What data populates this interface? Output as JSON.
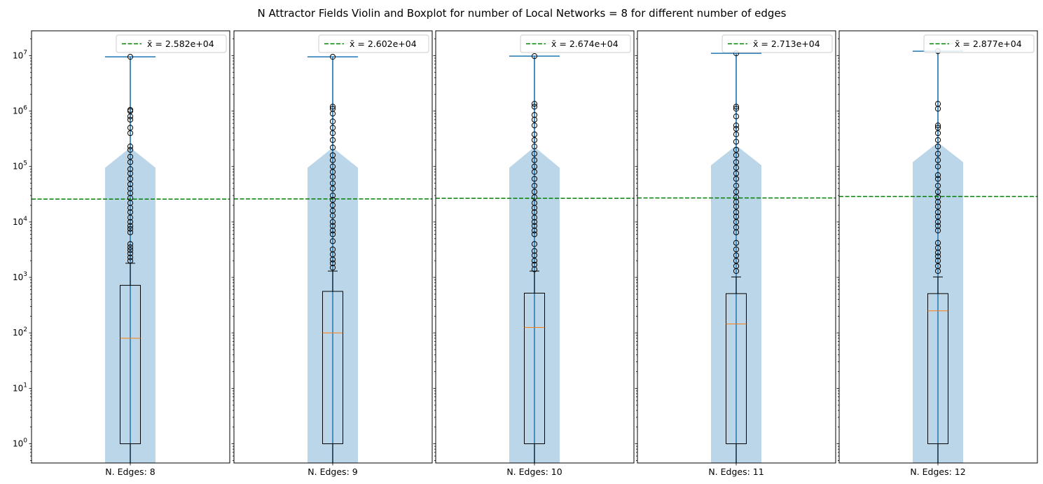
{
  "chart_data": {
    "type": "violin-boxplot",
    "title": "N Attractor Fields Violin and Boxplot for number of Local Networks = 8 for different number of edges",
    "yscale": "log",
    "ylim": [
      0.45,
      28000000
    ],
    "ytick_labels": [
      "10^0",
      "10^1",
      "10^2",
      "10^3",
      "10^4",
      "10^5",
      "10^6",
      "10^7"
    ],
    "yticks_exp": [
      0,
      1,
      2,
      3,
      4,
      5,
      6,
      7
    ],
    "legend_position": "upper right",
    "colors": {
      "mean_line": "#008000",
      "violin": "#1f77b4",
      "box": "#000000",
      "median": "#ff7f0e",
      "whisker": "#1f77b4",
      "outlier": "#000000"
    },
    "panels": [
      {
        "xlabel": "N. Edges: 8",
        "legend_label": "x̄ = 2.582e+04",
        "mean": 25820,
        "box": {
          "q1": 1,
          "median": 80,
          "q3": 720,
          "whisker_low": 0.45,
          "whisker_high": 1800
        },
        "violin": {
          "max": 9500000,
          "width_low": 1.0,
          "width_top": 0.5,
          "top_start": 95000,
          "top_end": 210000
        },
        "outliers": [
          2000,
          2300,
          2700,
          3100,
          3500,
          4000,
          6500,
          7500,
          8500,
          10000,
          12000,
          15000,
          18000,
          22000,
          27000,
          33000,
          40000,
          48000,
          60000,
          75000,
          90000,
          120000,
          150000,
          200000,
          230000,
          400000,
          500000,
          700000,
          800000,
          1000000,
          1050000,
          9500000
        ]
      },
      {
        "xlabel": "N. Edges: 9",
        "legend_label": "x̄ = 2.602e+04",
        "mean": 26020,
        "box": {
          "q1": 1,
          "median": 100,
          "q3": 560,
          "whisker_low": 0.45,
          "whisker_high": 1300
        },
        "violin": {
          "max": 9500000,
          "width_low": 1.0,
          "width_top": 0.5,
          "top_start": 95000,
          "top_end": 210000
        },
        "outliers": [
          1500,
          1800,
          2100,
          2600,
          3200,
          4500,
          6000,
          7000,
          8500,
          10000,
          13000,
          16000,
          20000,
          25000,
          30000,
          40000,
          50000,
          65000,
          80000,
          100000,
          130000,
          160000,
          220000,
          300000,
          400000,
          500000,
          650000,
          900000,
          1100000,
          1200000,
          9500000
        ]
      },
      {
        "xlabel": "N. Edges: 10",
        "legend_label": "x̄ = 2.674e+04",
        "mean": 26740,
        "box": {
          "q1": 1,
          "median": 125,
          "q3": 520,
          "whisker_low": 0.45,
          "whisker_high": 1300
        },
        "violin": {
          "max": 9800000,
          "width_low": 1.0,
          "width_top": 0.5,
          "top_start": 95000,
          "top_end": 215000
        },
        "outliers": [
          1400,
          1700,
          2000,
          2500,
          3000,
          4000,
          6000,
          7000,
          8500,
          10000,
          12000,
          15000,
          18000,
          22000,
          28000,
          35000,
          45000,
          60000,
          80000,
          100000,
          130000,
          170000,
          230000,
          300000,
          380000,
          550000,
          700000,
          850000,
          1200000,
          1350000,
          9800000
        ]
      },
      {
        "xlabel": "N. Edges: 11",
        "legend_label": "x̄ = 2.713e+04",
        "mean": 27130,
        "box": {
          "q1": 1,
          "median": 145,
          "q3": 510,
          "whisker_low": 0.45,
          "whisker_high": 1020
        },
        "violin": {
          "max": 11000000,
          "width_low": 1.0,
          "width_top": 0.5,
          "top_start": 105000,
          "top_end": 230000
        },
        "outliers": [
          1300,
          1600,
          2000,
          2500,
          3200,
          4200,
          6500,
          8000,
          10000,
          12500,
          15000,
          19000,
          23000,
          28000,
          35000,
          45000,
          60000,
          75000,
          95000,
          120000,
          160000,
          200000,
          280000,
          380000,
          480000,
          550000,
          800000,
          1100000,
          1200000,
          11000000
        ]
      },
      {
        "xlabel": "N. Edges: 12",
        "legend_label": "x̄ = 2.877e+04",
        "mean": 28770,
        "box": {
          "q1": 1,
          "median": 250,
          "q3": 510,
          "whisker_low": 0.45,
          "whisker_high": 1020
        },
        "violin": {
          "max": 12000000,
          "width_low": 1.0,
          "width_top": 0.5,
          "top_start": 120000,
          "top_end": 260000
        },
        "outliers": [
          1300,
          1600,
          2000,
          2400,
          2800,
          3400,
          4200,
          7000,
          8500,
          10000,
          12500,
          15000,
          19000,
          23000,
          28000,
          35000,
          45000,
          60000,
          70000,
          100000,
          130000,
          170000,
          230000,
          300000,
          400000,
          500000,
          550000,
          1100000,
          1350000,
          12000000
        ]
      }
    ]
  }
}
